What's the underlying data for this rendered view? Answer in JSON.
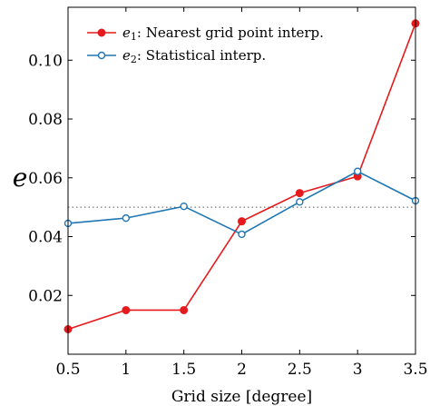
{
  "chart_data": {
    "type": "line",
    "xlabel": "Grid size [degree]",
    "ylabel": "e",
    "xlim": [
      0.5,
      3.5
    ],
    "ylim": [
      0.0,
      0.118
    ],
    "xticks": [
      "0.5",
      "1",
      "1.5",
      "2",
      "2.5",
      "3",
      "3.5"
    ],
    "yticks": [
      "0.02",
      "0.04",
      "0.06",
      "0.08",
      "0.10"
    ],
    "reference_line": {
      "y": 0.05,
      "style": "dotted"
    },
    "legend_position": "top-left",
    "x": [
      0.5,
      1,
      1.5,
      2,
      2.5,
      3,
      3.5
    ],
    "series": [
      {
        "name": "e₁: Nearest grid point interp.",
        "name_var": "e",
        "name_sub": "1",
        "name_rest": ": Nearest grid point interp.",
        "color": "#e41a1c",
        "marker": "filled-circle",
        "values": [
          0.0085,
          0.015,
          0.015,
          0.0452,
          0.0548,
          0.0605,
          0.1125
        ]
      },
      {
        "name": "e₂: Statistical interp.",
        "name_var": "e",
        "name_sub": "2",
        "name_rest": ": Statistical interp.",
        "color": "#1f77b4",
        "marker": "open-circle",
        "values": [
          0.0445,
          0.0463,
          0.0503,
          0.0408,
          0.0518,
          0.0622,
          0.0522
        ]
      }
    ]
  }
}
